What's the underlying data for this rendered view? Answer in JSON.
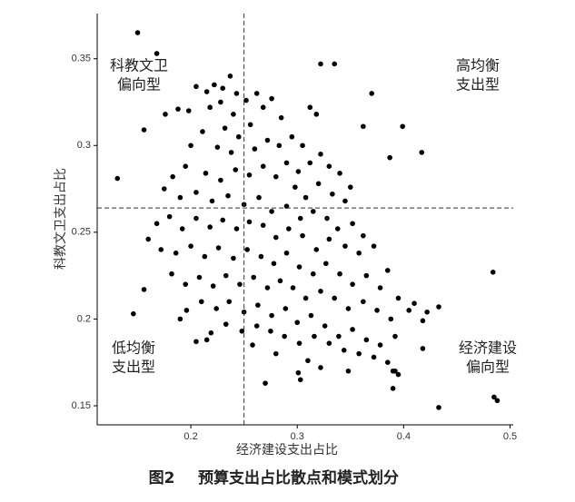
{
  "chart_data": {
    "type": "scatter",
    "x_label": "经济建设支出占比",
    "y_label": "科教文卫支出占比",
    "figure_label": "图2",
    "caption": "预算支出占比散点和模式划分",
    "color": "#000000",
    "xlim": [
      0.112,
      0.503
    ],
    "xticks": [
      0.2,
      0.3,
      0.4,
      0.5
    ],
    "ylim": [
      0.139,
      0.376
    ],
    "yticks": [
      0.15,
      0.2,
      0.25,
      0.3,
      0.35
    ],
    "vline": 0.25,
    "hline": 0.264,
    "quadrant_labels": [
      {
        "lines": [
          "科教文卫",
          "偏向型"
        ]
      },
      {
        "lines": [
          "高均衡",
          "支出型"
        ]
      },
      {
        "lines": [
          "低均衡",
          "支出型"
        ]
      },
      {
        "lines": [
          "经济建设",
          "偏向型"
        ]
      }
    ],
    "x": [
      0.15,
      0.168,
      0.179,
      0.156,
      0.131,
      0.322,
      0.335,
      0.37,
      0.399,
      0.417,
      0.387,
      0.362,
      0.484,
      0.485,
      0.488,
      0.433,
      0.39,
      0.146,
      0.156,
      0.39,
      0.392,
      0.418,
      0.422,
      0.433,
      0.41,
      0.418,
      0.27,
      0.303,
      0.301,
      0.205,
      0.215,
      0.222,
      0.23,
      0.237,
      0.243,
      0.228,
      0.218,
      0.198,
      0.188,
      0.176,
      0.24,
      0.252,
      0.262,
      0.268,
      0.276,
      0.256,
      0.245,
      0.232,
      0.211,
      0.2,
      0.225,
      0.238,
      0.26,
      0.272,
      0.283,
      0.295,
      0.305,
      0.318,
      0.312,
      0.285,
      0.29,
      0.301,
      0.312,
      0.322,
      0.33,
      0.34,
      0.35,
      0.345,
      0.333,
      0.32,
      0.308,
      0.298,
      0.28,
      0.268,
      0.255,
      0.242,
      0.228,
      0.214,
      0.195,
      0.183,
      0.175,
      0.19,
      0.205,
      0.22,
      0.235,
      0.25,
      0.264,
      0.276,
      0.29,
      0.303,
      0.315,
      0.328,
      0.338,
      0.352,
      0.362,
      0.372,
      0.358,
      0.345,
      0.33,
      0.318,
      0.305,
      0.292,
      0.28,
      0.268,
      0.255,
      0.243,
      0.23,
      0.218,
      0.205,
      0.192,
      0.18,
      0.168,
      0.16,
      0.172,
      0.186,
      0.2,
      0.213,
      0.226,
      0.24,
      0.253,
      0.266,
      0.278,
      0.29,
      0.302,
      0.315,
      0.327,
      0.34,
      0.352,
      0.365,
      0.378,
      0.385,
      0.395,
      0.405,
      0.388,
      0.375,
      0.362,
      0.348,
      0.335,
      0.322,
      0.308,
      0.296,
      0.284,
      0.272,
      0.259,
      0.246,
      0.233,
      0.221,
      0.208,
      0.195,
      0.182,
      0.196,
      0.21,
      0.224,
      0.236,
      0.25,
      0.263,
      0.276,
      0.289,
      0.3,
      0.313,
      0.326,
      0.339,
      0.352,
      0.365,
      0.378,
      0.392,
      0.385,
      0.372,
      0.358,
      0.344,
      0.33,
      0.316,
      0.302,
      0.288,
      0.275,
      0.262,
      0.248,
      0.233,
      0.219,
      0.205,
      0.19,
      0.215,
      0.258,
      0.28,
      0.31,
      0.322,
      0.395,
      0.348
    ],
    "values": [
      0.365,
      0.353,
      0.332,
      0.309,
      0.281,
      0.347,
      0.347,
      0.33,
      0.311,
      0.296,
      0.293,
      0.311,
      0.227,
      0.155,
      0.153,
      0.149,
      0.16,
      0.203,
      0.217,
      0.17,
      0.17,
      0.199,
      0.204,
      0.207,
      0.209,
      0.183,
      0.163,
      0.165,
      0.169,
      0.334,
      0.331,
      0.335,
      0.333,
      0.34,
      0.33,
      0.325,
      0.322,
      0.32,
      0.321,
      0.318,
      0.318,
      0.326,
      0.33,
      0.322,
      0.327,
      0.312,
      0.305,
      0.31,
      0.308,
      0.3,
      0.299,
      0.296,
      0.298,
      0.303,
      0.3,
      0.305,
      0.3,
      0.318,
      0.322,
      0.316,
      0.29,
      0.285,
      0.29,
      0.295,
      0.288,
      0.284,
      0.276,
      0.268,
      0.272,
      0.278,
      0.27,
      0.276,
      0.282,
      0.288,
      0.283,
      0.286,
      0.28,
      0.284,
      0.288,
      0.282,
      0.275,
      0.27,
      0.273,
      0.268,
      0.271,
      0.266,
      0.27,
      0.262,
      0.265,
      0.258,
      0.262,
      0.258,
      0.252,
      0.255,
      0.248,
      0.242,
      0.238,
      0.242,
      0.246,
      0.24,
      0.248,
      0.252,
      0.247,
      0.254,
      0.256,
      0.252,
      0.257,
      0.253,
      0.258,
      0.252,
      0.259,
      0.255,
      0.246,
      0.24,
      0.238,
      0.242,
      0.236,
      0.241,
      0.235,
      0.24,
      0.236,
      0.232,
      0.238,
      0.23,
      0.226,
      0.232,
      0.226,
      0.22,
      0.225,
      0.218,
      0.228,
      0.212,
      0.205,
      0.2,
      0.205,
      0.21,
      0.206,
      0.212,
      0.216,
      0.212,
      0.218,
      0.222,
      0.218,
      0.224,
      0.22,
      0.225,
      0.219,
      0.224,
      0.22,
      0.226,
      0.205,
      0.21,
      0.206,
      0.21,
      0.204,
      0.208,
      0.202,
      0.206,
      0.198,
      0.202,
      0.196,
      0.19,
      0.194,
      0.188,
      0.185,
      0.19,
      0.175,
      0.178,
      0.18,
      0.182,
      0.186,
      0.19,
      0.186,
      0.19,
      0.193,
      0.196,
      0.193,
      0.197,
      0.192,
      0.187,
      0.2,
      0.188,
      0.185,
      0.18,
      0.176,
      0.172,
      0.168,
      0.17
    ]
  }
}
